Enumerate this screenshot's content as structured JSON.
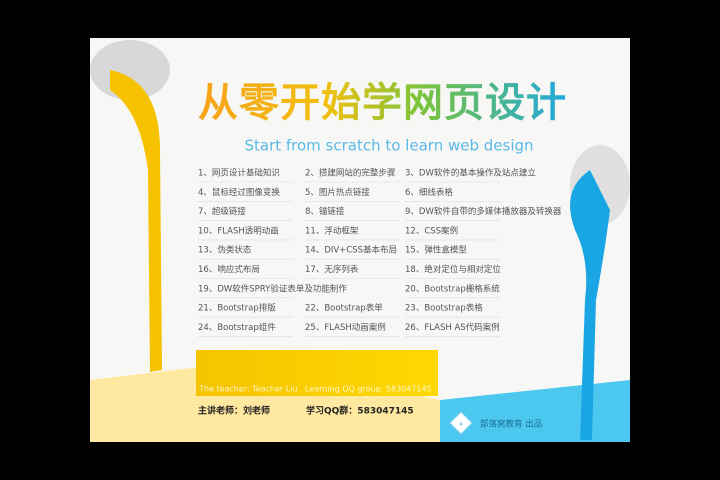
{
  "title": "从零开始学网页设计",
  "subtitle": "Start from scratch to learn web design",
  "items": [
    "1、网页设计基础知识",
    "2、搭建网站的完整步骤",
    "3、DW软件的基本操作及站点建立",
    "4、鼠标经过图像变换",
    "5、图片热点链接",
    "6、细线表格",
    "7、超级链接",
    "8、锚链接",
    "9、DW软件自带的多媒体播放器及转换器",
    "10、FLASH透明动画",
    "11、浮动框架",
    "12、CSS案例",
    "13、伪类状态",
    "14、DIV+CSS基本布局",
    "15、弹性盒模型",
    "16、响应式布局",
    "17、无序列表",
    "18、绝对定位与相对定位",
    "19、DW软件SPRY验证表单及功能制作",
    "20、Bootstrap栅格系统",
    "21、Bootstrap排版",
    "22、Bootstrap表单",
    "23、Bootstrap表格",
    "24、Bootstrap组件",
    "25、FLASH动画案例",
    "26、FLASH AS代码案例"
  ],
  "banner": {
    "teacher_en": "The teacher: Teacher Liu",
    "group_en": "Learning QQ group: 583047145"
  },
  "teacher": "主讲老师：刘老师",
  "qq_group": "学习QQ群：583047145",
  "publisher": "部落窝教育 出品"
}
